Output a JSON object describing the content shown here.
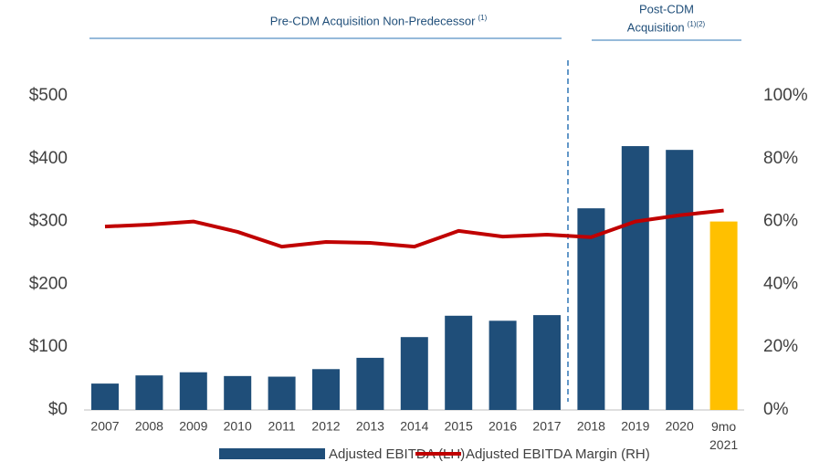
{
  "chart_data": {
    "type": "bar",
    "categories": [
      "2007",
      "2008",
      "2009",
      "2010",
      "2011",
      "2012",
      "2013",
      "2014",
      "2015",
      "2016",
      "2017",
      "2018",
      "2019",
      "2020",
      "9mo 2021"
    ],
    "series": [
      {
        "name": "Adjusted EBITDA (LH)",
        "type": "bar",
        "color": "#1f4e79",
        "highlight_color": "#ffc000",
        "highlight_index": 14,
        "values": [
          42,
          55,
          60,
          54,
          53,
          65,
          83,
          116,
          150,
          142,
          151,
          321,
          420,
          414,
          300
        ]
      },
      {
        "name": "Adjusted EBITDA Margin (RH)",
        "type": "line",
        "axis": "y2",
        "color": "#c00000",
        "values": [
          58.4,
          59,
          60,
          56.7,
          52,
          53.5,
          53.2,
          52,
          57,
          55.2,
          55.8,
          55,
          60,
          62,
          63.5
        ]
      }
    ],
    "ylim": [
      0,
      500
    ],
    "yticks": [
      {
        "value": 0,
        "label": "$0"
      },
      {
        "value": 100,
        "label": "$100"
      },
      {
        "value": 200,
        "label": "$200"
      },
      {
        "value": 300,
        "label": "$300"
      },
      {
        "value": 400,
        "label": "$400"
      },
      {
        "value": 500,
        "label": "$500"
      }
    ],
    "y2lim": [
      0,
      100
    ],
    "y2ticks": [
      {
        "value": 0,
        "label": "0%"
      },
      {
        "value": 20,
        "label": "20%"
      },
      {
        "value": 40,
        "label": "40%"
      },
      {
        "value": 60,
        "label": "60%"
      },
      {
        "value": 80,
        "label": "80%"
      },
      {
        "value": 100,
        "label": "100%"
      }
    ],
    "annotations": [
      {
        "text": [
          "Pre-CDM Acquisition Non-Predecessor"
        ],
        "note": "(1)"
      },
      {
        "text": [
          "Post-CDM",
          "Acquisition"
        ],
        "note": "(1)(2)"
      }
    ],
    "grid": false
  }
}
